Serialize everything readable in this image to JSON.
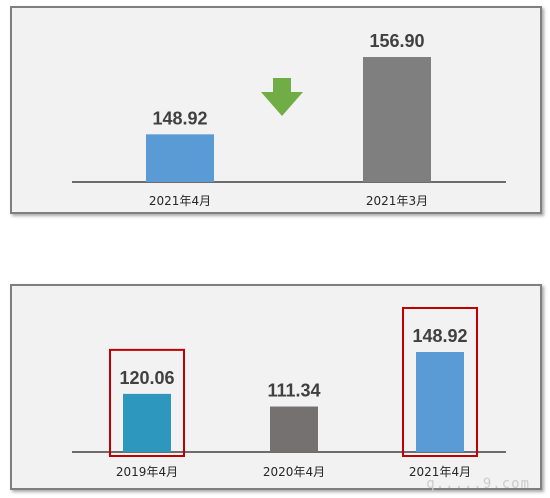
{
  "chart_data": [
    {
      "type": "bar",
      "categories": [
        "2021年4月",
        "2021年3月"
      ],
      "values": [
        148.92,
        156.9
      ],
      "value_labels": [
        "148.92",
        "156.90"
      ],
      "colors": [
        "#5b9bd5",
        "#7f7f7f"
      ],
      "title": "",
      "xlabel": "",
      "ylabel": "",
      "grid": false,
      "annotation": {
        "icon": "down-arrow-icon",
        "color": "#70ad47"
      }
    },
    {
      "type": "bar",
      "categories": [
        "2019年4月",
        "2020年4月",
        "2021年4月"
      ],
      "values": [
        120.06,
        111.34,
        148.92
      ],
      "value_labels": [
        "120.06",
        "111.34",
        "148.92"
      ],
      "colors": [
        "#2e97bd",
        "#767171",
        "#5b9bd5"
      ],
      "highlighted": [
        "2019年4月",
        "2021年4月"
      ],
      "highlight_color": "#c00000",
      "title": "",
      "xlabel": "",
      "ylabel": "",
      "grid": false
    }
  ],
  "watermark": "q.....9.com"
}
